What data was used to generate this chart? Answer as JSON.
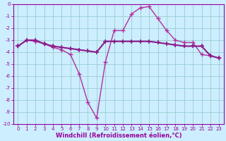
{
  "line1_x": [
    0,
    1,
    2,
    3,
    4,
    5,
    6,
    7,
    8,
    9,
    10,
    11,
    12,
    13,
    14,
    15,
    16,
    17,
    18,
    19,
    20,
    21,
    22,
    23
  ],
  "line1_y": [
    -3.5,
    -3.0,
    -3.0,
    -3.3,
    -3.5,
    -3.6,
    -3.7,
    -3.8,
    -3.9,
    -4.0,
    -3.1,
    -3.1,
    -3.1,
    -3.1,
    -3.1,
    -3.1,
    -3.2,
    -3.3,
    -3.4,
    -3.5,
    -3.5,
    -3.5,
    -4.3,
    -4.5
  ],
  "line2_x": [
    0,
    1,
    2,
    3,
    4,
    5,
    6,
    7,
    8,
    9,
    10,
    11,
    12,
    13,
    14,
    15,
    16,
    17,
    18,
    19,
    20,
    21,
    22,
    23
  ],
  "line2_y": [
    -3.5,
    -3.0,
    -3.1,
    -3.3,
    -3.6,
    -3.8,
    -4.2,
    -5.8,
    -8.2,
    -9.5,
    -4.8,
    -2.2,
    -2.2,
    -0.8,
    -0.3,
    -0.2,
    -1.2,
    -2.2,
    -3.0,
    -3.2,
    -3.2,
    -4.2,
    -4.3,
    -4.5
  ],
  "color1": "#8b1a8b",
  "color2": "#b030a0",
  "bgcolor": "#cceeff",
  "grid_color": "#99cccc",
  "xlabel": "Windchill (Refroidissement éolien,°C)",
  "xlim": [
    -0.5,
    23.5
  ],
  "ylim": [
    -10,
    0
  ],
  "yticks": [
    0,
    -1,
    -2,
    -3,
    -4,
    -5,
    -6,
    -7,
    -8,
    -9,
    -10
  ],
  "xticks": [
    0,
    1,
    2,
    3,
    4,
    5,
    6,
    7,
    8,
    9,
    10,
    11,
    12,
    13,
    14,
    15,
    16,
    17,
    18,
    19,
    20,
    21,
    22,
    23
  ],
  "marker": "+",
  "markersize": 4,
  "linewidth": 1.0,
  "font_color": "#990099",
  "tick_fontsize": 5.0,
  "xlabel_fontsize": 6.0
}
